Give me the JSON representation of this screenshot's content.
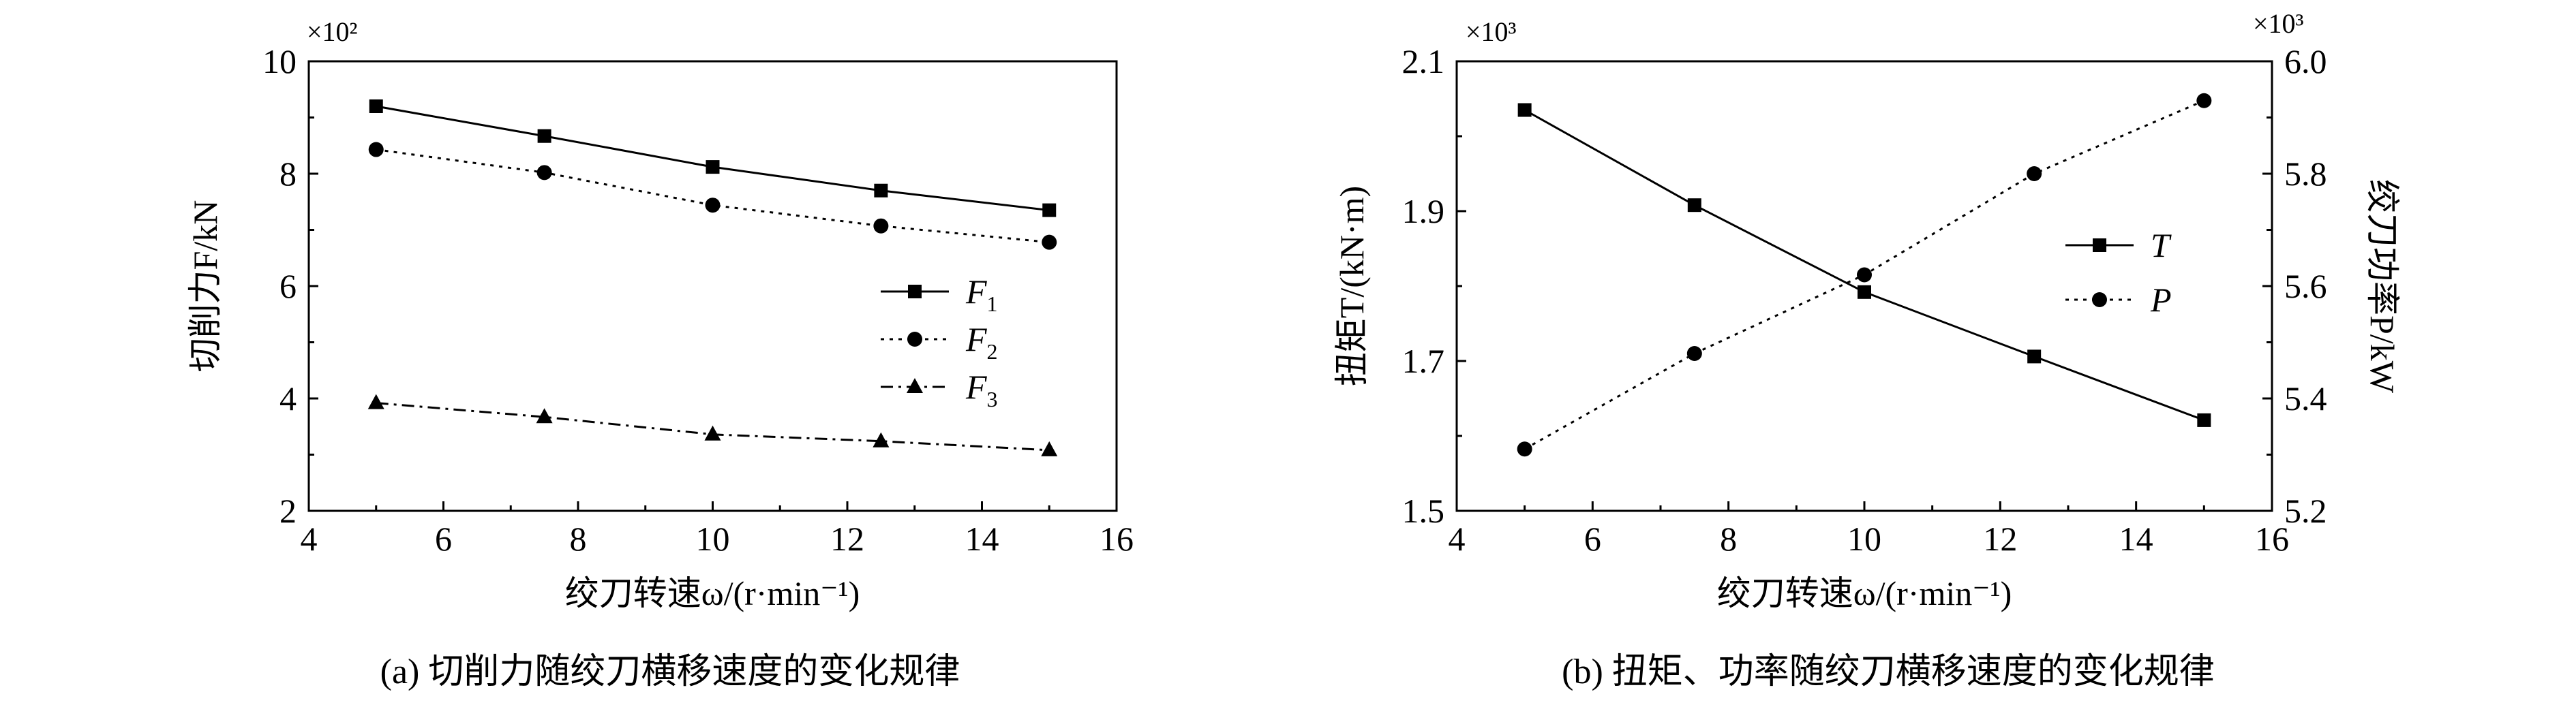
{
  "chart_data": [
    {
      "type": "line",
      "caption": "(a) 切削力随绞刀横移速度的变化规律",
      "xlabel": "绞刀转速ω/(r·min⁻¹)",
      "ylabel": "切削力F/kN",
      "y_multiplier": "×10²",
      "xlim": [
        4,
        16
      ],
      "ylim": [
        2,
        10
      ],
      "x_ticks": [
        4,
        6,
        8,
        10,
        12,
        14,
        16
      ],
      "y_ticks": [
        2,
        4,
        6,
        8,
        10
      ],
      "grid": false,
      "legend_position": "center-right",
      "x": [
        5,
        7.5,
        10,
        12.5,
        15
      ],
      "series": [
        {
          "name": "F1",
          "marker": "square",
          "line": "solid",
          "values": [
            9.2,
            8.67,
            8.12,
            7.7,
            7.35
          ]
        },
        {
          "name": "F2",
          "marker": "circle",
          "line": "dotted",
          "values": [
            8.43,
            8.02,
            7.44,
            7.07,
            6.78
          ]
        },
        {
          "name": "F3",
          "marker": "triangle",
          "line": "dashdot",
          "values": [
            3.92,
            3.67,
            3.36,
            3.24,
            3.08
          ]
        }
      ]
    },
    {
      "type": "line",
      "caption": "(b) 扭矩、功率随绞刀横移速度的变化规律",
      "xlabel": "绞刀转速ω/(r·min⁻¹)",
      "ylabel": "扭矩T/(kN·m)",
      "y2label": "绞刀功率P/kW",
      "y_multiplier": "×10³",
      "y2_multiplier": "×10³",
      "xlim": [
        4,
        16
      ],
      "ylim": [
        1.5,
        2.1
      ],
      "y2lim": [
        5.2,
        6.0
      ],
      "x_ticks": [
        4,
        6,
        8,
        10,
        12,
        14,
        16
      ],
      "y_ticks": [
        "1.5",
        "1.7",
        "1.9",
        "2.1"
      ],
      "y2_ticks": [
        "5.2",
        "5.4",
        "5.6",
        "5.8",
        "6.0"
      ],
      "grid": false,
      "legend_position": "center-right",
      "x": [
        5,
        7.5,
        10,
        12.5,
        15
      ],
      "series": [
        {
          "name": "T",
          "axis": "left",
          "marker": "square",
          "line": "solid",
          "values": [
            2.035,
            1.908,
            1.792,
            1.706,
            1.621
          ]
        },
        {
          "name": "P",
          "axis": "right",
          "marker": "circle",
          "line": "dotted",
          "values": [
            5.31,
            5.48,
            5.62,
            5.8,
            5.93
          ]
        }
      ]
    }
  ]
}
